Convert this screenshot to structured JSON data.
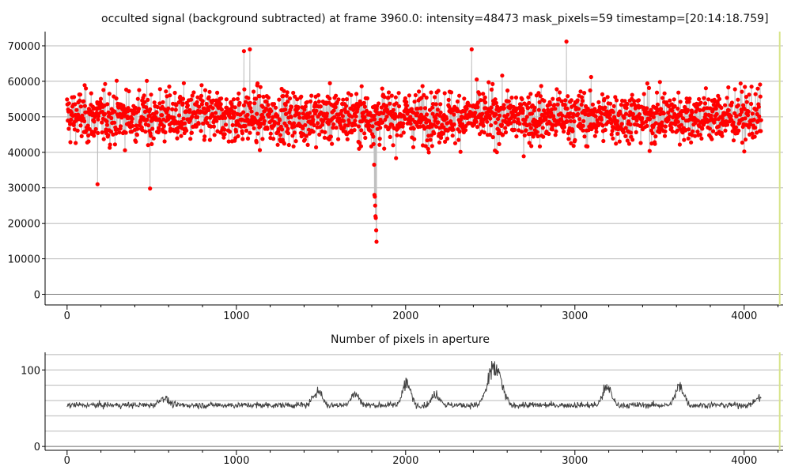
{
  "colors": {
    "background": "#ffffff",
    "grid": "#b8b8b8",
    "axis": "#000000",
    "signal_points": "#ff0000",
    "signal_line": "#c0c0c0",
    "pixel_line": "#404040",
    "frame_marker": "#d8e48a"
  },
  "chart_data": [
    {
      "type": "scatter",
      "title": "occulted signal (background subtracted) at frame 3960.0: intensity=48473 mask_pixels=59 timestamp=[20:14:18.759]",
      "xlabel": "",
      "ylabel": "",
      "xlim": [
        -130,
        4230
      ],
      "ylim": [
        -3000,
        74000
      ],
      "x_ticks": [
        "0",
        "1000",
        "2000",
        "3000",
        "4000"
      ],
      "y_ticks": [
        "0",
        "10000",
        "20000",
        "30000",
        "40000",
        "50000",
        "60000",
        "70000"
      ],
      "grid": true,
      "marker_frame": 4210,
      "series": [
        {
          "x_start": 0,
          "x_end": 4100,
          "baseline": 50000,
          "typical_spread": [
            40000,
            60000
          ],
          "extreme_points": [
            {
              "x": 180,
              "y": 31000
            },
            {
              "x": 490,
              "y": 29800
            },
            {
              "x": 1045,
              "y": 68500
            },
            {
              "x": 1080,
              "y": 69000
            },
            {
              "x": 2390,
              "y": 69000
            },
            {
              "x": 2950,
              "y": 71200
            }
          ],
          "dip": {
            "x": 1820,
            "values": [
              36500,
              28000,
              27500,
              25000,
              22000,
              21500,
              18000,
              14800
            ]
          }
        }
      ]
    },
    {
      "type": "line",
      "title": "Number of pixels in aperture",
      "xlabel": "",
      "ylabel": "",
      "xlim": [
        -130,
        4230
      ],
      "ylim": [
        -5,
        123
      ],
      "x_ticks": [
        "0",
        "1000",
        "2000",
        "3000",
        "4000"
      ],
      "y_ticks": [
        "0",
        "100"
      ],
      "grid_lines": [
        0,
        20,
        40,
        60,
        80,
        100,
        120
      ],
      "grid": true,
      "marker_frame": 4210,
      "series": [
        {
          "x_start": 0,
          "x_end": 4100,
          "baseline": 54,
          "noise": 4,
          "peaks": [
            {
              "x": 570,
              "y": 67
            },
            {
              "x": 1480,
              "y": 80
            },
            {
              "x": 1700,
              "y": 73
            },
            {
              "x": 2005,
              "y": 90
            },
            {
              "x": 2180,
              "y": 72
            },
            {
              "x": 2525,
              "y": 115
            },
            {
              "x": 3190,
              "y": 86
            },
            {
              "x": 3620,
              "y": 86
            },
            {
              "x": 4090,
              "y": 67
            }
          ]
        }
      ]
    }
  ]
}
